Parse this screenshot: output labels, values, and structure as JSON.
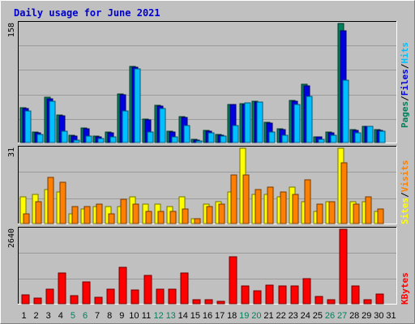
{
  "colors": {
    "background": "#c0c0c0",
    "panel": "#c0c0c0",
    "grid": "#9a9a9a",
    "title": "#0000cc",
    "hits": "#00805c",
    "files": "#0000e0",
    "pages": "#00c0ff",
    "visits": "#ffff00",
    "sites": "#ff8000",
    "kbytes": "#ff0000",
    "weekend_day": "#00805c",
    "weekday_day": "#000000"
  },
  "chart_data": {
    "type": "bar",
    "title": "Daily usage for June 2021",
    "days": [
      "1",
      "2",
      "3",
      "4",
      "5",
      "6",
      "7",
      "8",
      "9",
      "10",
      "11",
      "12",
      "13",
      "14",
      "15",
      "16",
      "17",
      "18",
      "19",
      "20",
      "21",
      "22",
      "23",
      "24",
      "25",
      "26",
      "27",
      "28",
      "29",
      "30",
      "31"
    ],
    "weekend_days": [
      "5",
      "6",
      "12",
      "13",
      "19",
      "20",
      "26",
      "27"
    ],
    "panels": [
      {
        "ymax": "158",
        "series": [
          {
            "name": "Hits",
            "values": [
              46,
              14,
              60,
              37,
              10,
              19,
              9,
              14,
              64,
              101,
              31,
              49,
              15,
              34,
              4,
              16,
              11,
              51,
              52,
              55,
              27,
              18,
              56,
              77,
              8,
              14,
              158,
              17,
              22,
              17,
              0
            ]
          },
          {
            "name": "Files",
            "values": [
              45,
              13,
              58,
              35,
              9,
              18,
              8,
              13,
              63,
              100,
              30,
              48,
              14,
              33,
              3,
              15,
              10,
              50,
              50,
              54,
              26,
              17,
              55,
              75,
              7,
              13,
              148,
              16,
              21,
              16,
              0
            ]
          },
          {
            "name": "Pages",
            "values": [
              42,
              11,
              55,
              15,
              3,
              9,
              5,
              7,
              42,
              98,
              14,
              45,
              8,
              23,
              2,
              13,
              9,
              23,
              53,
              54,
              14,
              10,
              50,
              61,
              4,
              10,
              83,
              13,
              21,
              15,
              0
            ]
          }
        ],
        "side_labels": [
          "Pages",
          "Files",
          "Hits"
        ]
      },
      {
        "ymax": "31",
        "series": [
          {
            "name": "Visits",
            "values": [
              11,
              12,
              14,
              13,
              4,
              6,
              7,
              7,
              7,
              11,
              8,
              8,
              7,
              11,
              2,
              8,
              9,
              13,
              31,
              12,
              12,
              11,
              15,
              9,
              5,
              9,
              31,
              9,
              9,
              5,
              0
            ]
          },
          {
            "name": "Sites",
            "values": [
              4,
              9,
              19,
              17,
              7,
              7,
              8,
              4,
              10,
              8,
              5,
              5,
              5,
              6,
              2,
              7,
              8,
              20,
              20,
              14,
              15,
              13,
              12,
              18,
              8,
              9,
              25,
              8,
              11,
              6,
              0
            ]
          }
        ],
        "side_labels": [
          "Sites",
          "Visits"
        ]
      },
      {
        "ymax": "2640",
        "series": [
          {
            "name": "KBytes",
            "values": [
              320,
              200,
              520,
              1100,
              300,
              780,
              240,
              510,
              1280,
              480,
              1010,
              510,
              510,
              1100,
              140,
              150,
              90,
              1650,
              640,
              460,
              660,
              620,
              620,
              880,
              250,
              140,
              2640,
              630,
              140,
              330,
              0
            ]
          }
        ],
        "side_labels": [
          "KBytes"
        ]
      }
    ]
  }
}
